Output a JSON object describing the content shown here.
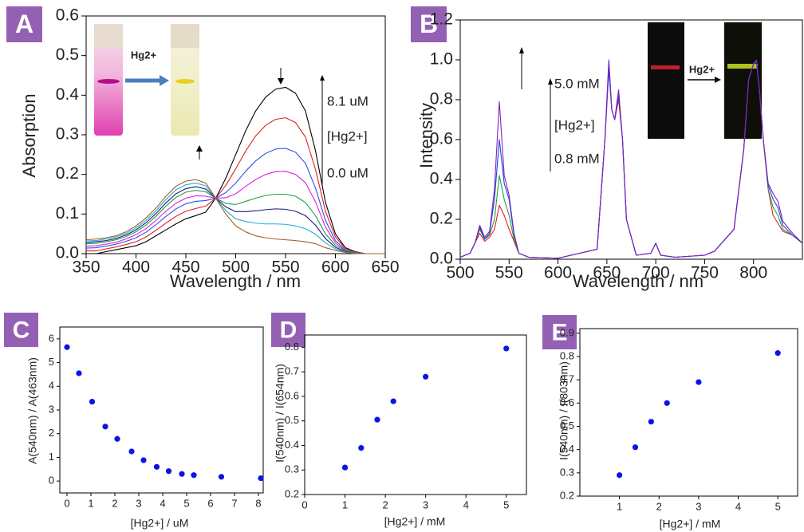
{
  "chart_data": [
    {
      "type": "line",
      "panel": "A",
      "x_label": "Wavelength / nm",
      "y_label": "Absorption",
      "annotations": [
        "8.1 uM",
        "[Hg2+]",
        "0.0 uM"
      ],
      "inset_label": "Hg2+",
      "xlim": [
        350,
        650
      ],
      "xticks": [
        350,
        400,
        450,
        500,
        550,
        600,
        650
      ],
      "ylim": [
        0,
        0.6
      ],
      "yticks": [
        {
          "value": 0,
          "label": "0.0"
        },
        {
          "value": 0.1,
          "label": "0.1"
        },
        {
          "value": 0.2,
          "label": "0.2"
        },
        {
          "value": 0.3,
          "label": "0.3"
        },
        {
          "value": 0.4,
          "label": "0.4"
        },
        {
          "value": 0.5,
          "label": "0.5"
        },
        {
          "value": 0.6,
          "label": "0.6"
        }
      ],
      "x": [
        350,
        360,
        370,
        380,
        390,
        400,
        410,
        420,
        430,
        440,
        450,
        460,
        470,
        480,
        490,
        500,
        510,
        520,
        530,
        540,
        550,
        560,
        570,
        580,
        590,
        600,
        610,
        620,
        630,
        640,
        650
      ],
      "series": [
        {
          "color": "#000000",
          "values": [
            0,
            0,
            0.005,
            0.01,
            0.015,
            0.02,
            0.03,
            0.045,
            0.06,
            0.075,
            0.088,
            0.096,
            0.105,
            0.14,
            0.19,
            0.25,
            0.31,
            0.36,
            0.395,
            0.415,
            0.42,
            0.405,
            0.36,
            0.26,
            0.13,
            0.05,
            0.015,
            0.005,
            0,
            0,
            0
          ]
        },
        {
          "color": "#e02020",
          "values": [
            0.007,
            0.007,
            0.012,
            0.017,
            0.023,
            0.03,
            0.042,
            0.059,
            0.077,
            0.094,
            0.107,
            0.114,
            0.12,
            0.14,
            0.172,
            0.214,
            0.259,
            0.297,
            0.324,
            0.339,
            0.343,
            0.331,
            0.294,
            0.213,
            0.107,
            0.042,
            0.013,
            0.004,
            0,
            0,
            0
          ]
        },
        {
          "color": "#3050e0",
          "values": [
            0.014,
            0.015,
            0.019,
            0.024,
            0.031,
            0.04,
            0.054,
            0.073,
            0.094,
            0.113,
            0.126,
            0.132,
            0.134,
            0.14,
            0.154,
            0.178,
            0.208,
            0.234,
            0.253,
            0.264,
            0.266,
            0.256,
            0.228,
            0.166,
            0.084,
            0.033,
            0.01,
            0.003,
            0,
            0,
            0
          ]
        },
        {
          "color": "#e020e0",
          "values": [
            0.019,
            0.02,
            0.024,
            0.029,
            0.037,
            0.048,
            0.063,
            0.084,
            0.107,
            0.127,
            0.14,
            0.146,
            0.145,
            0.14,
            0.141,
            0.151,
            0.17,
            0.187,
            0.2,
            0.207,
            0.208,
            0.2,
            0.179,
            0.131,
            0.067,
            0.027,
            0.008,
            0.002,
            0,
            0,
            0
          ]
        },
        {
          "color": "#20a040",
          "values": [
            0.025,
            0.026,
            0.03,
            0.035,
            0.043,
            0.055,
            0.072,
            0.094,
            0.12,
            0.142,
            0.155,
            0.16,
            0.156,
            0.14,
            0.127,
            0.124,
            0.132,
            0.14,
            0.147,
            0.15,
            0.15,
            0.145,
            0.129,
            0.096,
            0.05,
            0.021,
            0.007,
            0.002,
            0,
            0,
            0
          ]
        },
        {
          "color": "#1a1a80",
          "values": [
            0.028,
            0.03,
            0.033,
            0.038,
            0.047,
            0.06,
            0.078,
            0.101,
            0.128,
            0.151,
            0.164,
            0.169,
            0.163,
            0.14,
            0.118,
            0.106,
            0.106,
            0.108,
            0.111,
            0.113,
            0.112,
            0.107,
            0.096,
            0.072,
            0.038,
            0.016,
            0.005,
            0.001,
            0,
            0,
            0
          ]
        },
        {
          "color": "#20b0d0",
          "values": [
            0.032,
            0.033,
            0.037,
            0.042,
            0.051,
            0.065,
            0.084,
            0.108,
            0.137,
            0.161,
            0.174,
            0.178,
            0.171,
            0.14,
            0.109,
            0.088,
            0.081,
            0.077,
            0.075,
            0.075,
            0.074,
            0.07,
            0.063,
            0.049,
            0.027,
            0.012,
            0.004,
            0.001,
            0,
            0,
            0
          ]
        },
        {
          "color": "#a06020",
          "values": [
            0.035,
            0.037,
            0.04,
            0.045,
            0.055,
            0.07,
            0.09,
            0.115,
            0.145,
            0.17,
            0.183,
            0.187,
            0.178,
            0.14,
            0.1,
            0.07,
            0.055,
            0.045,
            0.04,
            0.037,
            0.035,
            0.033,
            0.03,
            0.025,
            0.015,
            0.008,
            0.003,
            0,
            0,
            0,
            0
          ]
        }
      ]
    },
    {
      "type": "line",
      "panel": "B",
      "x_label": "Wavelength / nm",
      "y_label": "Intensity",
      "annotations": [
        "5.0 mM",
        "[Hg2+]",
        "0.8 mM"
      ],
      "inset_label": "Hg2+",
      "xlim": [
        500,
        850
      ],
      "xticks": [
        500,
        550,
        600,
        650,
        700,
        750,
        800
      ],
      "ylim": [
        0,
        1.2
      ],
      "yticks": [
        {
          "value": 0,
          "label": "0.0"
        },
        {
          "value": 0.2,
          "label": "0.2"
        },
        {
          "value": 0.4,
          "label": "0.4"
        },
        {
          "value": 0.6,
          "label": "0.6"
        },
        {
          "value": 0.8,
          "label": "0.8"
        },
        {
          "value": 1,
          "label": "1.0"
        },
        {
          "value": 1.2,
          "label": "1.2"
        }
      ],
      "x": [
        500,
        510,
        515,
        520,
        525,
        530,
        535,
        540,
        545,
        550,
        555,
        560,
        570,
        600,
        640,
        648,
        652,
        655,
        658,
        662,
        666,
        670,
        680,
        695,
        700,
        705,
        720,
        750,
        760,
        780,
        790,
        795,
        800,
        803,
        806,
        810,
        815,
        820,
        825,
        830,
        840,
        850
      ],
      "series": [
        {
          "color": "#e02020",
          "values": [
            0.01,
            0.03,
            0.08,
            0.13,
            0.09,
            0.11,
            0.15,
            0.27,
            0.22,
            0.15,
            0.09,
            0.03,
            0.01,
            0.005,
            0.05,
            0.6,
            0.97,
            0.75,
            0.7,
            0.8,
            0.6,
            0.2,
            0.02,
            0.03,
            0.08,
            0.02,
            0.01,
            0.02,
            0.04,
            0.15,
            0.55,
            0.9,
            0.98,
            0.99,
            0.85,
            0.6,
            0.35,
            0.22,
            0.18,
            0.14,
            0.12,
            0.08
          ]
        },
        {
          "color": "#20a040",
          "values": [
            0.01,
            0.03,
            0.08,
            0.15,
            0.1,
            0.12,
            0.2,
            0.42,
            0.3,
            0.22,
            0.1,
            0.03,
            0.01,
            0.005,
            0.05,
            0.6,
            0.99,
            0.75,
            0.7,
            0.84,
            0.6,
            0.2,
            0.02,
            0.03,
            0.08,
            0.02,
            0.01,
            0.02,
            0.04,
            0.15,
            0.55,
            0.9,
            0.98,
            0.99,
            0.85,
            0.6,
            0.35,
            0.26,
            0.22,
            0.15,
            0.12,
            0.08
          ]
        },
        {
          "color": "#2040e0",
          "values": [
            0.01,
            0.03,
            0.08,
            0.16,
            0.1,
            0.13,
            0.3,
            0.6,
            0.38,
            0.3,
            0.12,
            0.03,
            0.01,
            0.005,
            0.05,
            0.6,
            0.95,
            0.75,
            0.7,
            0.82,
            0.6,
            0.2,
            0.02,
            0.03,
            0.08,
            0.02,
            0.01,
            0.02,
            0.04,
            0.15,
            0.55,
            0.9,
            0.98,
            0.99,
            0.85,
            0.6,
            0.37,
            0.3,
            0.26,
            0.17,
            0.12,
            0.08
          ]
        },
        {
          "color": "#8020c0",
          "values": [
            0.01,
            0.03,
            0.08,
            0.17,
            0.11,
            0.14,
            0.35,
            0.79,
            0.42,
            0.32,
            0.13,
            0.03,
            0.01,
            0.005,
            0.05,
            0.6,
            1.0,
            0.75,
            0.7,
            0.85,
            0.6,
            0.2,
            0.02,
            0.03,
            0.08,
            0.02,
            0.01,
            0.02,
            0.04,
            0.15,
            0.55,
            0.9,
            0.98,
            1.0,
            0.85,
            0.6,
            0.38,
            0.33,
            0.29,
            0.19,
            0.13,
            0.08
          ]
        }
      ]
    },
    {
      "type": "scatter",
      "panel": "C",
      "x_label": "[Hg2+] / uM",
      "y_label": "A(540nm) / A(463nm)",
      "color": "#0a14e6",
      "xlim": [
        -0.3,
        8.2
      ],
      "xticks": [
        0,
        1,
        2,
        3,
        4,
        5,
        6,
        7,
        8
      ],
      "ylim": [
        -0.5,
        6.5
      ],
      "yticks": [
        0,
        1,
        2,
        3,
        4,
        5,
        6
      ],
      "x": [
        0,
        0.5,
        1.05,
        1.6,
        2.1,
        2.7,
        3.2,
        3.75,
        4.25,
        4.8,
        5.3,
        6.45,
        8.1
      ],
      "values": [
        5.65,
        4.55,
        3.35,
        2.3,
        1.78,
        1.25,
        0.88,
        0.6,
        0.42,
        0.3,
        0.25,
        0.18,
        0.12
      ]
    },
    {
      "type": "scatter",
      "panel": "D",
      "x_label": "[Hg2+] / mM",
      "y_label": "I(540nm) / I(654nm)",
      "color": "#0a14e6",
      "xlim": [
        0,
        5.5
      ],
      "xticks": [
        0,
        1,
        2,
        3,
        4,
        5
      ],
      "ylim": [
        0.2,
        0.85
      ],
      "yticks": [
        0.2,
        0.3,
        0.4,
        0.5,
        0.6,
        0.7,
        0.8
      ],
      "x": [
        1,
        1.4,
        1.8,
        2.2,
        3,
        5
      ],
      "values": [
        0.31,
        0.39,
        0.505,
        0.58,
        0.68,
        0.795
      ]
    },
    {
      "type": "scatter",
      "panel": "E",
      "x_label": "[Hg2+] / mM",
      "y_label": "I(540nm) / I(803nm)",
      "color": "#0a14e6",
      "xlim": [
        0,
        5.5
      ],
      "xticks": [
        1,
        2,
        3,
        4,
        5
      ],
      "ylim": [
        0.2,
        0.92
      ],
      "yticks": [
        0.2,
        0.3,
        0.4,
        0.5,
        0.6,
        0.7,
        0.8,
        0.9
      ],
      "x": [
        1,
        1.4,
        1.8,
        2.2,
        3,
        5
      ],
      "values": [
        0.29,
        0.41,
        0.52,
        0.6,
        0.69,
        0.815
      ]
    }
  ]
}
